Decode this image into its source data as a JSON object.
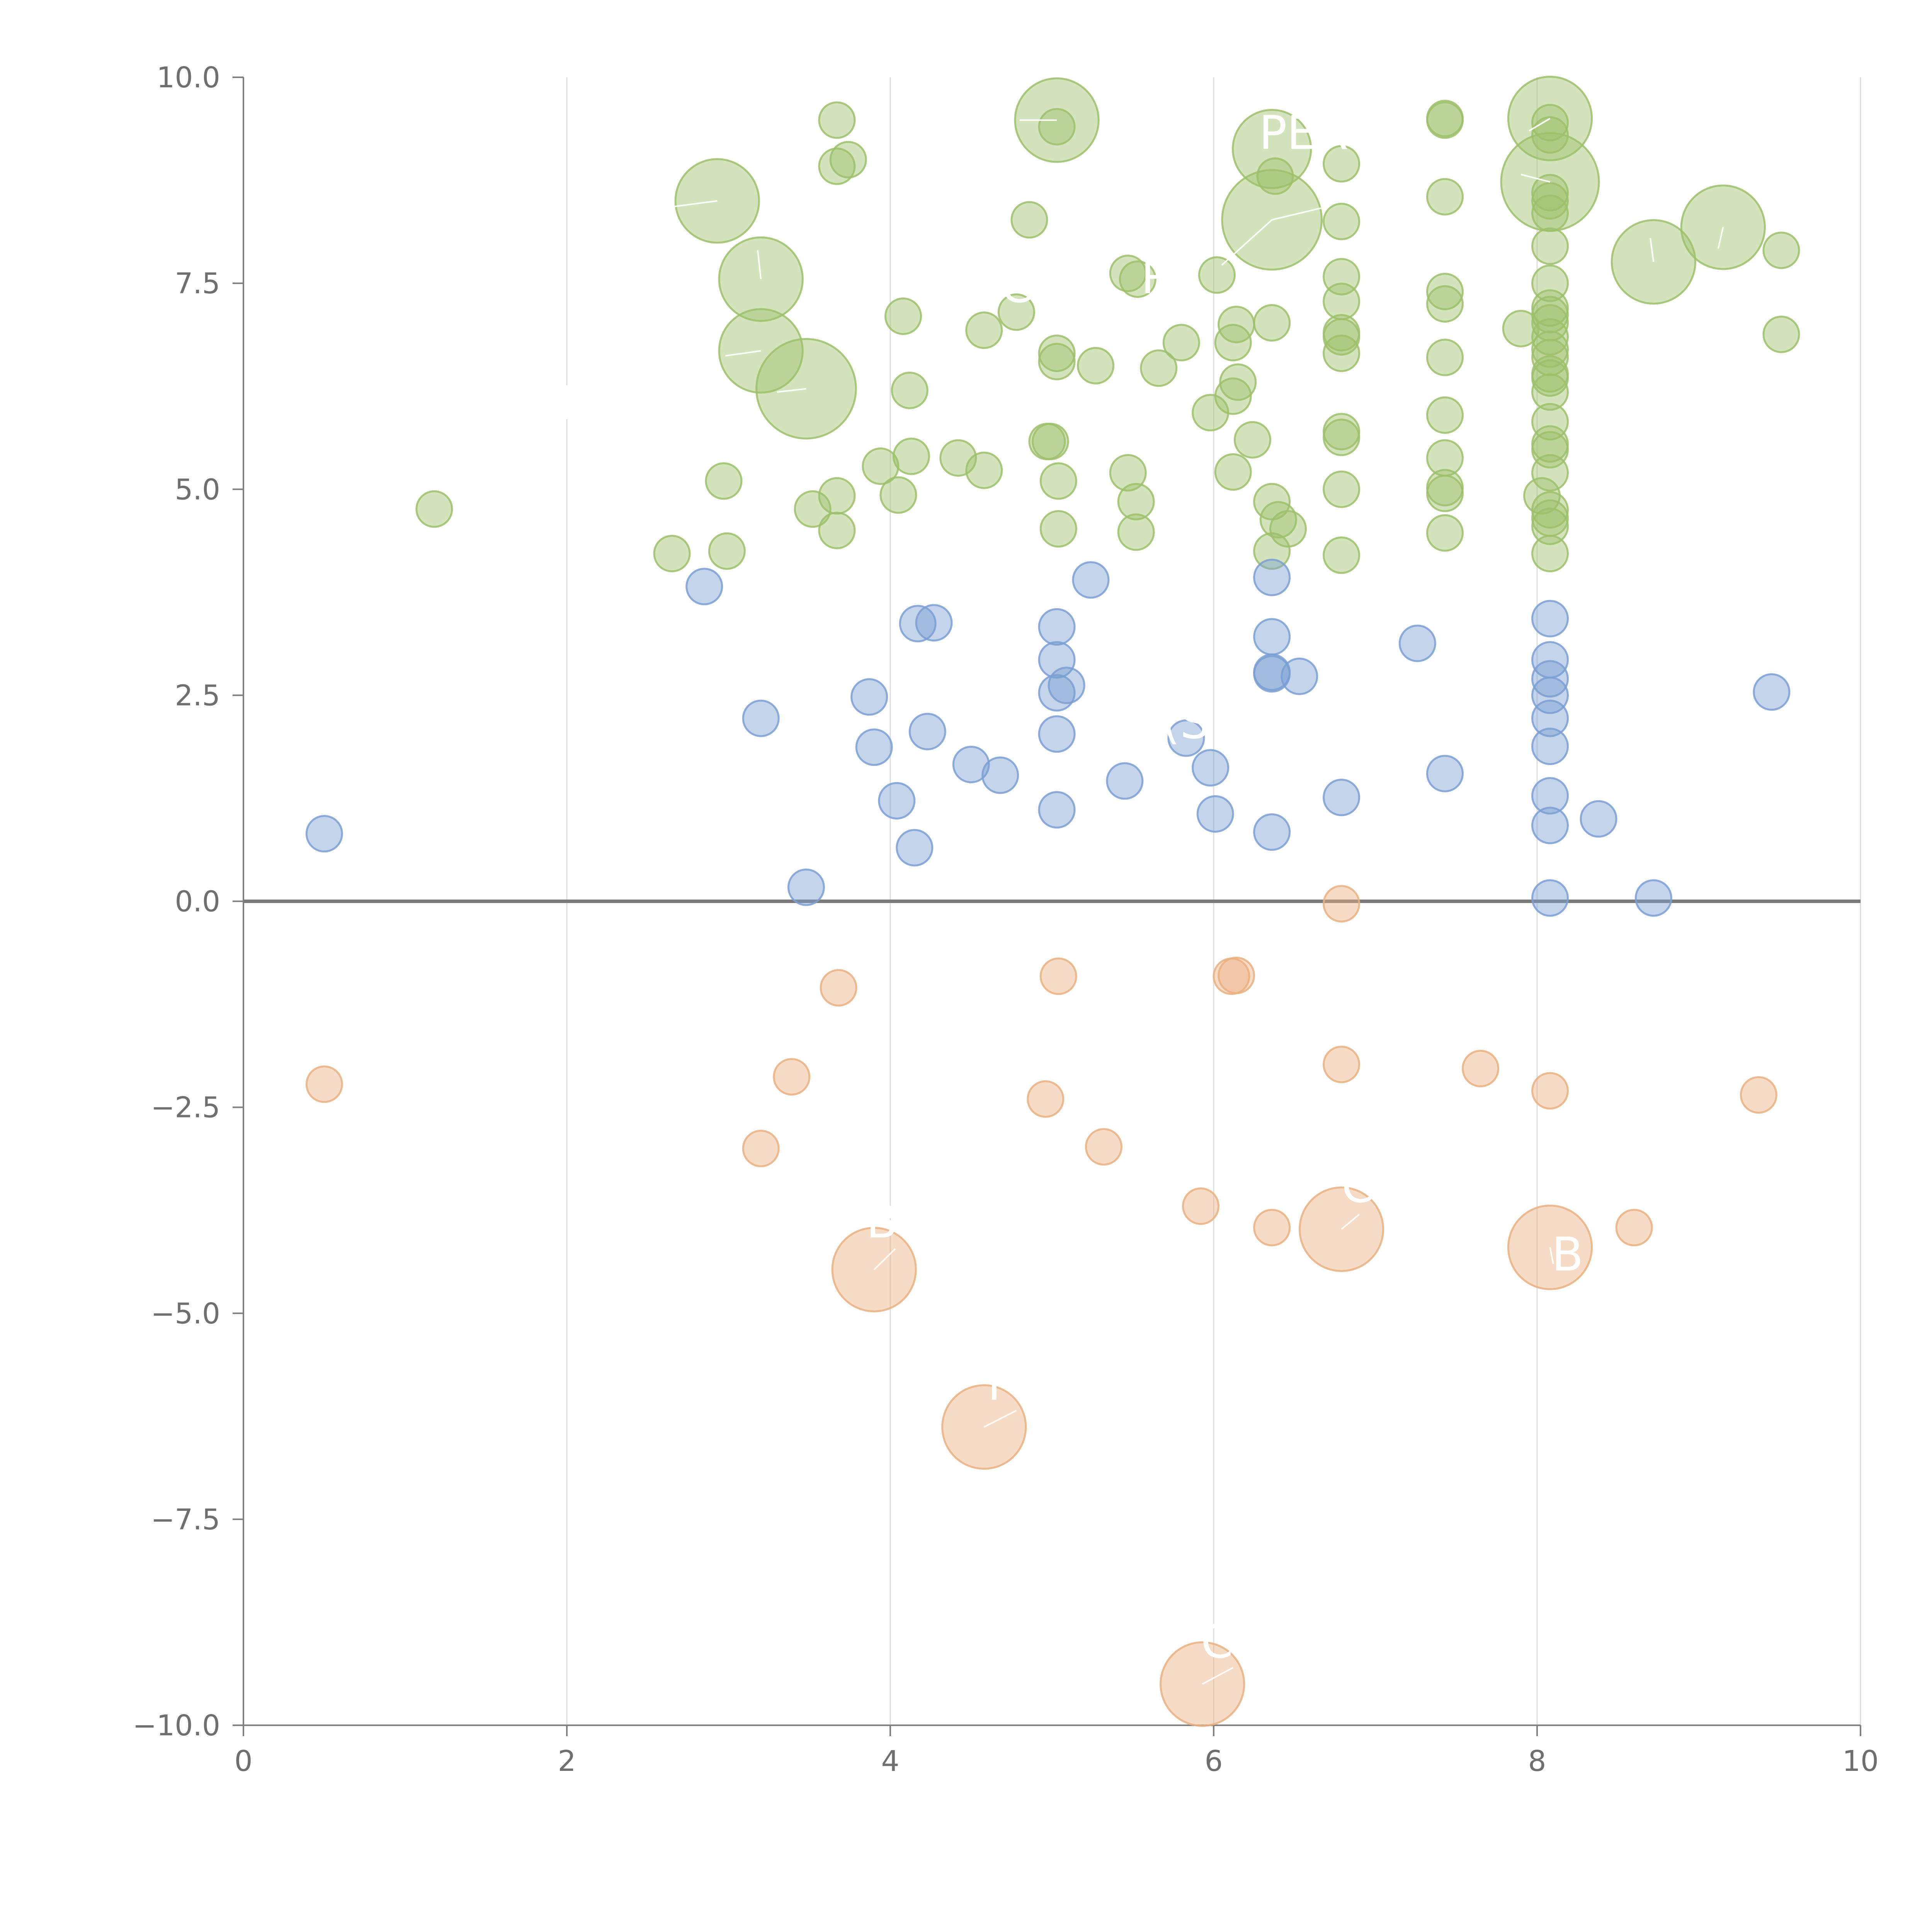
{
  "chart_data": {
    "type": "scatter",
    "title": "",
    "xlabel": "",
    "ylabel": "",
    "xlim": [
      0,
      10
    ],
    "ylim": [
      -10,
      10
    ],
    "x_ticks": [
      0,
      2,
      4,
      6,
      8,
      10
    ],
    "y_ticks": [
      -10,
      -7.5,
      -5,
      -2.5,
      0,
      2.5,
      5,
      7.5,
      10
    ],
    "x_tick_labels": [
      "0",
      "2",
      "4",
      "6",
      "8",
      "10"
    ],
    "y_tick_labels": [
      "−10.0",
      "−7.5",
      "−5.0",
      "−2.5",
      "0.0",
      "2.5",
      "5.0",
      "7.5",
      "10.0"
    ],
    "grid": "vertical",
    "zero_line": true,
    "legend": "none",
    "marker_units": "relative size (1 = small, up to ~3 = largest)",
    "series": [
      {
        "name": "green",
        "color": "#9dc06b",
        "points": [
          [
            1.18,
            4.76,
            1
          ],
          [
            2.65,
            4.22,
            1
          ],
          [
            2.97,
            5.1,
            1
          ],
          [
            2.99,
            4.25,
            1
          ],
          [
            2.93,
            8.5,
            2.35
          ],
          [
            3.2,
            7.55,
            2.35
          ],
          [
            3.2,
            6.68,
            2.35
          ],
          [
            3.48,
            6.22,
            2.8
          ],
          [
            3.52,
            4.76,
            1
          ],
          [
            3.67,
            9.48,
            1
          ],
          [
            3.67,
            8.92,
            1
          ],
          [
            3.67,
            4.92,
            1
          ],
          [
            3.67,
            4.5,
            1
          ],
          [
            3.74,
            9,
            1
          ],
          [
            3.94,
            5.28,
            1
          ],
          [
            4.05,
            4.93,
            1
          ],
          [
            4.08,
            7.1,
            1
          ],
          [
            4.12,
            6.2,
            1
          ],
          [
            4.13,
            5.4,
            1
          ],
          [
            4.42,
            5.38,
            1
          ],
          [
            4.58,
            5.23,
            1
          ],
          [
            4.58,
            6.93,
            1
          ],
          [
            4.78,
            7.15,
            1
          ],
          [
            4.86,
            8.27,
            1
          ],
          [
            4.97,
            5.58,
            1
          ],
          [
            4.99,
            5.58,
            1
          ],
          [
            5.03,
            9.48,
            2.35
          ],
          [
            5.03,
            9.4,
            1
          ],
          [
            5.03,
            6.65,
            1
          ],
          [
            5.03,
            6.55,
            1
          ],
          [
            5.04,
            5.1,
            1
          ],
          [
            5.04,
            4.52,
            1
          ],
          [
            5.27,
            6.5,
            1
          ],
          [
            5.47,
            5.2,
            1
          ],
          [
            5.47,
            7.62,
            1
          ],
          [
            5.53,
            7.55,
            1
          ],
          [
            5.52,
            4.85,
            1
          ],
          [
            5.52,
            4.48,
            1
          ],
          [
            5.66,
            6.47,
            1
          ],
          [
            5.8,
            6.78,
            1
          ],
          [
            5.98,
            5.93,
            1
          ],
          [
            6.02,
            7.6,
            1
          ],
          [
            6.12,
            5.21,
            1
          ],
          [
            6.12,
            6.13,
            1
          ],
          [
            6.15,
            6.3,
            1
          ],
          [
            6.12,
            6.78,
            1
          ],
          [
            6.14,
            7.0,
            1
          ],
          [
            6.24,
            5.6,
            1
          ],
          [
            6.36,
            9.13,
            2.2
          ],
          [
            6.36,
            8.27,
            2.8
          ],
          [
            6.36,
            7.02,
            1
          ],
          [
            6.36,
            4.85,
            1
          ],
          [
            6.36,
            4.25,
            1
          ],
          [
            6.38,
            8.8,
            1
          ],
          [
            6.4,
            4.63,
            1
          ],
          [
            6.46,
            4.52,
            1
          ],
          [
            6.79,
            8.95,
            1
          ],
          [
            6.79,
            8.25,
            1
          ],
          [
            6.79,
            7.58,
            1
          ],
          [
            6.79,
            7.28,
            1
          ],
          [
            6.79,
            6.9,
            1
          ],
          [
            6.79,
            6.85,
            1
          ],
          [
            6.79,
            6.65,
            1
          ],
          [
            6.79,
            5.7,
            1
          ],
          [
            6.79,
            5.63,
            1
          ],
          [
            6.79,
            5.0,
            1
          ],
          [
            6.79,
            4.2,
            1
          ],
          [
            7.43,
            9.5,
            1
          ],
          [
            7.43,
            9.48,
            1
          ],
          [
            7.43,
            8.55,
            1
          ],
          [
            7.43,
            7.4,
            1
          ],
          [
            7.43,
            7.25,
            1
          ],
          [
            7.43,
            6.6,
            1
          ],
          [
            7.43,
            5.9,
            1
          ],
          [
            7.43,
            5.38,
            1
          ],
          [
            7.43,
            5.02,
            1
          ],
          [
            7.43,
            4.95,
            1
          ],
          [
            7.43,
            4.47,
            1
          ],
          [
            7.9,
            6.95,
            1
          ],
          [
            8.03,
            4.92,
            1
          ],
          [
            8.08,
            9.5,
            2.35
          ],
          [
            8.08,
            9.45,
            1
          ],
          [
            8.08,
            9.3,
            1
          ],
          [
            8.08,
            8.73,
            2.75
          ],
          [
            8.08,
            8.6,
            1
          ],
          [
            8.08,
            8.5,
            1
          ],
          [
            8.08,
            8.35,
            1
          ],
          [
            8.08,
            7.95,
            1
          ],
          [
            8.08,
            7.5,
            1
          ],
          [
            8.08,
            7.2,
            1
          ],
          [
            8.08,
            7.12,
            1
          ],
          [
            8.08,
            7.02,
            1
          ],
          [
            8.08,
            6.85,
            1
          ],
          [
            8.08,
            6.7,
            1
          ],
          [
            8.08,
            6.6,
            1
          ],
          [
            8.08,
            6.4,
            1
          ],
          [
            8.08,
            6.35,
            1
          ],
          [
            8.08,
            6.18,
            1
          ],
          [
            8.08,
            5.82,
            1
          ],
          [
            8.08,
            5.55,
            1
          ],
          [
            8.08,
            5.48,
            1
          ],
          [
            8.08,
            5.2,
            1
          ],
          [
            8.08,
            4.75,
            1
          ],
          [
            8.08,
            4.65,
            1
          ],
          [
            8.08,
            4.55,
            1
          ],
          [
            8.08,
            4.22,
            1
          ],
          [
            8.72,
            7.76,
            2.35
          ],
          [
            9.15,
            8.18,
            2.35
          ],
          [
            9.51,
            7.9,
            1
          ],
          [
            9.51,
            6.88,
            1
          ]
        ]
      },
      {
        "name": "blue",
        "color": "#7b9fd3",
        "points": [
          [
            0.5,
            0.82,
            1
          ],
          [
            2.85,
            3.82,
            1
          ],
          [
            3.2,
            2.22,
            1
          ],
          [
            3.48,
            0.17,
            1
          ],
          [
            3.87,
            2.48,
            1
          ],
          [
            3.9,
            1.87,
            1
          ],
          [
            4.04,
            1.22,
            1
          ],
          [
            4.15,
            0.65,
            1
          ],
          [
            4.17,
            3.37,
            1
          ],
          [
            4.27,
            3.38,
            1
          ],
          [
            4.23,
            2.06,
            1
          ],
          [
            4.5,
            1.66,
            1
          ],
          [
            4.68,
            1.53,
            1
          ],
          [
            5.03,
            3.33,
            1
          ],
          [
            5.03,
            2.93,
            1
          ],
          [
            5.03,
            2.53,
            1
          ],
          [
            5.03,
            2.03,
            1
          ],
          [
            5.03,
            1.11,
            1
          ],
          [
            5.09,
            2.62,
            1
          ],
          [
            5.24,
            3.9,
            1
          ],
          [
            5.45,
            1.46,
            1
          ],
          [
            5.83,
            1.98,
            1
          ],
          [
            5.98,
            1.62,
            1
          ],
          [
            6.01,
            1.06,
            1
          ],
          [
            6.36,
            3.93,
            1
          ],
          [
            6.36,
            3.21,
            1
          ],
          [
            6.36,
            2.78,
            1
          ],
          [
            6.36,
            2.76,
            1
          ],
          [
            6.53,
            2.73,
            1
          ],
          [
            6.36,
            0.84,
            1
          ],
          [
            6.79,
            1.26,
            1
          ],
          [
            7.26,
            3.13,
            1
          ],
          [
            7.43,
            1.55,
            1
          ],
          [
            8.08,
            3.43,
            1
          ],
          [
            8.08,
            2.93,
            1
          ],
          [
            8.08,
            2.7,
            1
          ],
          [
            8.08,
            2.5,
            1
          ],
          [
            8.08,
            2.22,
            1
          ],
          [
            8.08,
            1.88,
            1
          ],
          [
            8.08,
            1.28,
            1
          ],
          [
            8.08,
            0.92,
            1
          ],
          [
            8.38,
            1.0,
            1
          ],
          [
            8.08,
            0.04,
            1
          ],
          [
            8.72,
            0.04,
            1
          ],
          [
            9.45,
            2.54,
            1
          ]
        ]
      },
      {
        "name": "orange",
        "color": "#eab080",
        "points": [
          [
            0.5,
            -2.22,
            1
          ],
          [
            3.2,
            -3.0,
            1
          ],
          [
            3.39,
            -2.13,
            1
          ],
          [
            3.68,
            -1.05,
            1
          ],
          [
            3.9,
            -4.47,
            2.35
          ],
          [
            4.58,
            -6.38,
            2.35
          ],
          [
            4.96,
            -2.4,
            1
          ],
          [
            5.04,
            -0.91,
            1
          ],
          [
            5.32,
            -2.98,
            1
          ],
          [
            5.92,
            -3.7,
            1
          ],
          [
            5.93,
            -9.5,
            2.35
          ],
          [
            6.11,
            -0.91,
            1
          ],
          [
            6.14,
            -0.9,
            1
          ],
          [
            6.36,
            -3.96,
            1
          ],
          [
            6.79,
            -0.03,
            1
          ],
          [
            6.79,
            -1.98,
            1
          ],
          [
            6.79,
            -3.98,
            2.35
          ],
          [
            7.65,
            -2.03,
            1
          ],
          [
            8.08,
            -2.3,
            1
          ],
          [
            8.08,
            -4.2,
            2.35
          ],
          [
            8.6,
            -3.96,
            1
          ],
          [
            9.37,
            -2.35,
            1
          ]
        ]
      }
    ],
    "annotations": [
      {
        "text": "PER",
        "x": 6.28,
        "y": 9.13
      },
      {
        "text": "CL",
        "x": 4.68,
        "y": 7.27
      },
      {
        "text": "R",
        "x": 5.55,
        "y": 7.38
      },
      {
        "text": "I",
        "x": 1.95,
        "y": 5.85
      },
      {
        "text": "(S",
        "x": 5.68,
        "y": 1.98
      },
      {
        "text": "C",
        "x": 6.79,
        "y": -3.65
      },
      {
        "text": "B",
        "x": 3.85,
        "y": -4.08
      },
      {
        "text": "I",
        "x": 4.6,
        "y": -6.05
      },
      {
        "text": "C",
        "x": 5.92,
        "y": -9.18
      },
      {
        "text": "B",
        "x": 8.09,
        "y": -4.48
      }
    ]
  }
}
